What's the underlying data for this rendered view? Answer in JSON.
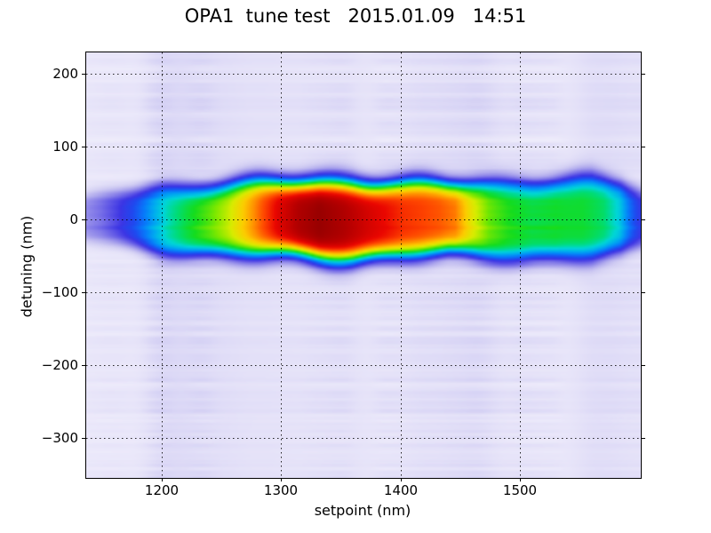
{
  "window": {
    "title": "OPA1  tune test   2015.01.09   14:51"
  },
  "chart_data": {
    "type": "heatmap",
    "title": "OPA1  tune test   2015.01.09   14:51",
    "xlabel": "setpoint (nm)",
    "ylabel": "detuning (nm)",
    "xlim": [
      1137,
      1601
    ],
    "ylim": [
      -355,
      229
    ],
    "xticks": [
      1200,
      1300,
      1400,
      1500
    ],
    "xtick_labels": [
      "1200",
      "1300",
      "1400",
      "1500"
    ],
    "yticks": [
      200,
      100,
      0,
      -100,
      -200,
      -300
    ],
    "ytick_labels": [
      "200",
      "100",
      "0",
      "−100",
      "−200",
      "−300"
    ],
    "grid": "dotted-black",
    "legend": "none",
    "band": {
      "description": "Horizontal high-intensity tuning band centered at detuning 0 nm spanning the full setpoint range; peak (dark red) near setpoint 1300-1385 nm, secondary red lobe near 1400-1440 nm, yellow near 1450-1470 nm, green plateau 1480-1585 nm, blue tails at both ends",
      "center_detuning_nm": 0,
      "peak_setpoint_nm": 1330,
      "profile_setpoint": [
        1137,
        1150,
        1163,
        1178,
        1192,
        1205,
        1222,
        1240,
        1256,
        1270,
        1284,
        1298,
        1315,
        1332,
        1352,
        1372,
        1388,
        1402,
        1418,
        1432,
        1446,
        1460,
        1474,
        1490,
        1510,
        1530,
        1552,
        1570,
        1583,
        1592,
        1601
      ],
      "profile_amplitude": [
        0.24,
        0.29,
        0.36,
        0.45,
        0.53,
        0.6,
        0.66,
        0.71,
        0.76,
        0.82,
        0.88,
        0.93,
        0.97,
        0.99,
        0.97,
        0.94,
        0.92,
        0.9,
        0.89,
        0.88,
        0.86,
        0.78,
        0.72,
        0.69,
        0.67,
        0.68,
        0.67,
        0.64,
        0.58,
        0.47,
        0.38
      ],
      "sigma_setpoint": [
        1137,
        1170,
        1200,
        1240,
        1280,
        1320,
        1360,
        1400,
        1440,
        1480,
        1520,
        1560,
        1585,
        1601
      ],
      "sigma_nm": [
        23,
        30,
        35,
        38,
        41,
        43,
        44,
        41,
        39,
        41,
        43,
        43,
        38,
        30
      ],
      "shape_exponent": 2.4,
      "wiggle_amp_nm": 3
    },
    "colormap_stops": [
      {
        "t": 0.0,
        "color": "#f3f1fc"
      },
      {
        "t": 0.07,
        "color": "#e4e1f8"
      },
      {
        "t": 0.14,
        "color": "#d0ccf3"
      },
      {
        "t": 0.21,
        "color": "#b3adee"
      },
      {
        "t": 0.28,
        "color": "#8c84e9"
      },
      {
        "t": 0.34,
        "color": "#655ce6"
      },
      {
        "t": 0.4,
        "color": "#3c35e4"
      },
      {
        "t": 0.46,
        "color": "#1f49ef"
      },
      {
        "t": 0.52,
        "color": "#077bfa"
      },
      {
        "t": 0.57,
        "color": "#00aaf0"
      },
      {
        "t": 0.62,
        "color": "#00d6d6"
      },
      {
        "t": 0.66,
        "color": "#00dc78"
      },
      {
        "t": 0.7,
        "color": "#14dc1e"
      },
      {
        "t": 0.745,
        "color": "#7ce800"
      },
      {
        "t": 0.785,
        "color": "#d8ec00"
      },
      {
        "t": 0.825,
        "color": "#fccc00"
      },
      {
        "t": 0.86,
        "color": "#ff9000"
      },
      {
        "t": 0.895,
        "color": "#fe4400"
      },
      {
        "t": 0.925,
        "color": "#ea0600"
      },
      {
        "t": 0.965,
        "color": "#b70000"
      },
      {
        "t": 1.0,
        "color": "#8d0000"
      }
    ],
    "background": {
      "base": 0.035,
      "stripe_amp": 0.055,
      "streak_amp": 0.075,
      "seed": 7,
      "description": "pale lavender background with horizontal streak noise and soft vertical stripes"
    },
    "frame_color": "#000000",
    "figure_bg": "#ffffff"
  }
}
